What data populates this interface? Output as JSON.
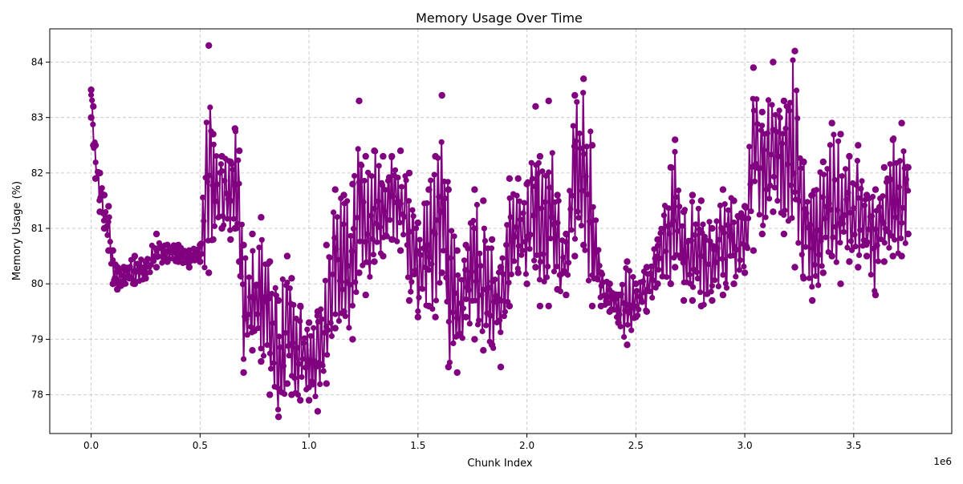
{
  "chart_data": {
    "type": "line",
    "title": "Memory Usage Over Time",
    "xlabel": "Chunk Index",
    "ylabel": "Memory Usage (%)",
    "x_offset_label": "1e6",
    "xlim": [
      -0.19,
      3.95
    ],
    "ylim": [
      77.3,
      84.6
    ],
    "x_ticks": [
      0.0,
      0.5,
      1.0,
      1.5,
      2.0,
      2.5,
      3.0,
      3.5
    ],
    "x_tick_labels": [
      "0.0",
      "0.5",
      "1.0",
      "1.5",
      "2.0",
      "2.5",
      "3.0",
      "3.5"
    ],
    "y_ticks": [
      78,
      79,
      80,
      81,
      82,
      83,
      84
    ],
    "y_tick_labels": [
      "78",
      "79",
      "80",
      "81",
      "82",
      "83",
      "84"
    ],
    "grid": true,
    "grid_style": "dashed",
    "color": "#800080",
    "marker": "circle",
    "series": [
      {
        "x_envelope": [
          0.0,
          0.01,
          0.02,
          0.04,
          0.06,
          0.08,
          0.1,
          0.12,
          0.15,
          0.2,
          0.25,
          0.3,
          0.35,
          0.4,
          0.45,
          0.5,
          0.54,
          0.56,
          0.6,
          0.64,
          0.66,
          0.68,
          0.7,
          0.74,
          0.78,
          0.82,
          0.86,
          0.9,
          0.92,
          0.96,
          1.0,
          1.04,
          1.08,
          1.12,
          1.16,
          1.2,
          1.23,
          1.26,
          1.3,
          1.34,
          1.38,
          1.42,
          1.46,
          1.5,
          1.55,
          1.58,
          1.61,
          1.64,
          1.68,
          1.72,
          1.76,
          1.8,
          1.84,
          1.88,
          1.92,
          1.96,
          2.0,
          2.04,
          2.06,
          2.1,
          2.14,
          2.18,
          2.22,
          2.26,
          2.3,
          2.34,
          2.38,
          2.42,
          2.46,
          2.5,
          2.55,
          2.6,
          2.66,
          2.68,
          2.72,
          2.76,
          2.8,
          2.85,
          2.9,
          2.95,
          3.0,
          3.04,
          3.08,
          3.13,
          3.18,
          3.23,
          3.27,
          3.31,
          3.36,
          3.4,
          3.44,
          3.48,
          3.52,
          3.56,
          3.6,
          3.64,
          3.68,
          3.72,
          3.75
        ],
        "y_high": [
          83.5,
          83.2,
          82.5,
          82.0,
          81.6,
          81.4,
          80.6,
          80.3,
          80.3,
          80.5,
          80.4,
          80.9,
          80.7,
          80.7,
          80.6,
          80.7,
          84.3,
          82.7,
          82.3,
          82.2,
          82.8,
          82.4,
          80.7,
          80.9,
          81.2,
          80.4,
          79.7,
          80.5,
          80.1,
          79.6,
          79.3,
          79.5,
          80.7,
          81.7,
          81.6,
          81.8,
          83.3,
          82.3,
          82.4,
          82.3,
          82.3,
          82.4,
          82.0,
          81.1,
          81.7,
          82.3,
          83.4,
          81.7,
          80.6,
          80.7,
          81.7,
          81.5,
          80.8,
          80.3,
          81.9,
          81.9,
          81.8,
          83.2,
          82.3,
          83.3,
          81.6,
          80.9,
          83.4,
          83.7,
          82.5,
          80.2,
          80.0,
          79.8,
          80.4,
          80.0,
          80.3,
          80.8,
          82.1,
          82.6,
          81.3,
          81.6,
          81.5,
          81.0,
          81.7,
          81.5,
          81.4,
          83.9,
          83.1,
          84.0,
          83.3,
          84.2,
          82.2,
          81.6,
          82.2,
          82.9,
          82.7,
          82.3,
          82.5,
          81.6,
          81.7,
          82.1,
          82.6,
          82.9,
          82.1
        ],
        "y_low": [
          83.0,
          82.5,
          81.9,
          81.3,
          81.0,
          80.6,
          80.0,
          79.9,
          80.0,
          80.0,
          80.1,
          80.3,
          80.4,
          80.4,
          80.3,
          80.4,
          80.2,
          80.8,
          81.0,
          80.8,
          81.0,
          80.4,
          78.4,
          78.8,
          78.6,
          78.0,
          77.6,
          78.2,
          78.0,
          77.9,
          77.9,
          77.7,
          78.2,
          79.2,
          79.5,
          79.0,
          80.2,
          79.8,
          80.4,
          80.5,
          80.8,
          80.6,
          79.7,
          79.4,
          79.6,
          79.4,
          80.2,
          78.5,
          78.4,
          79.4,
          79.0,
          78.8,
          78.9,
          78.5,
          79.6,
          80.2,
          80.0,
          80.3,
          79.6,
          79.6,
          79.9,
          79.8,
          80.5,
          80.7,
          79.6,
          79.6,
          79.5,
          79.3,
          78.9,
          79.4,
          79.5,
          80.0,
          80.0,
          80.3,
          79.7,
          79.7,
          79.6,
          79.7,
          79.8,
          80.0,
          80.2,
          80.6,
          80.9,
          81.3,
          80.9,
          80.3,
          80.1,
          79.7,
          80.2,
          80.5,
          80.0,
          80.4,
          80.3,
          80.5,
          79.8,
          80.4,
          80.5,
          80.5,
          80.9
        ]
      }
    ]
  }
}
